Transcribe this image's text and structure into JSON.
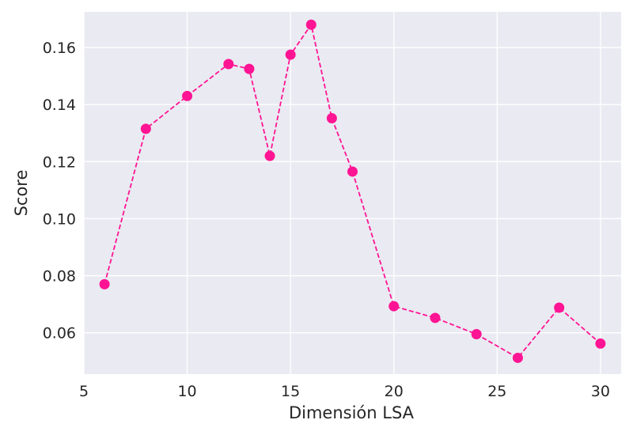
{
  "chart_data": {
    "type": "line",
    "title": "",
    "xlabel": "Dimensión LSA",
    "ylabel": "Score",
    "xlim": [
      5,
      31
    ],
    "ylim": [
      0.0455,
      0.1725
    ],
    "xticks": [
      5,
      10,
      15,
      20,
      25,
      30
    ],
    "xtick_labels": [
      "5",
      "10",
      "15",
      "20",
      "25",
      "30"
    ],
    "yticks": [
      0.06,
      0.08,
      0.1,
      0.12,
      0.14,
      0.16
    ],
    "ytick_labels": [
      "0.06",
      "0.08",
      "0.10",
      "0.12",
      "0.14",
      "0.16"
    ],
    "grid": true,
    "background_color": "#eaeaf2",
    "grid_color": "#ffffff",
    "series": [
      {
        "color": "#ff1493",
        "line_style": "dashed",
        "marker": "circle",
        "x": [
          6,
          8,
          10,
          12,
          13,
          14,
          15,
          16,
          17,
          18,
          20,
          22,
          24,
          26,
          28,
          30
        ],
        "y": [
          0.077,
          0.1315,
          0.143,
          0.1542,
          0.1525,
          0.122,
          0.1575,
          0.168,
          0.1352,
          0.1165,
          0.0693,
          0.0652,
          0.0595,
          0.0512,
          0.0688,
          0.0562
        ]
      }
    ]
  }
}
